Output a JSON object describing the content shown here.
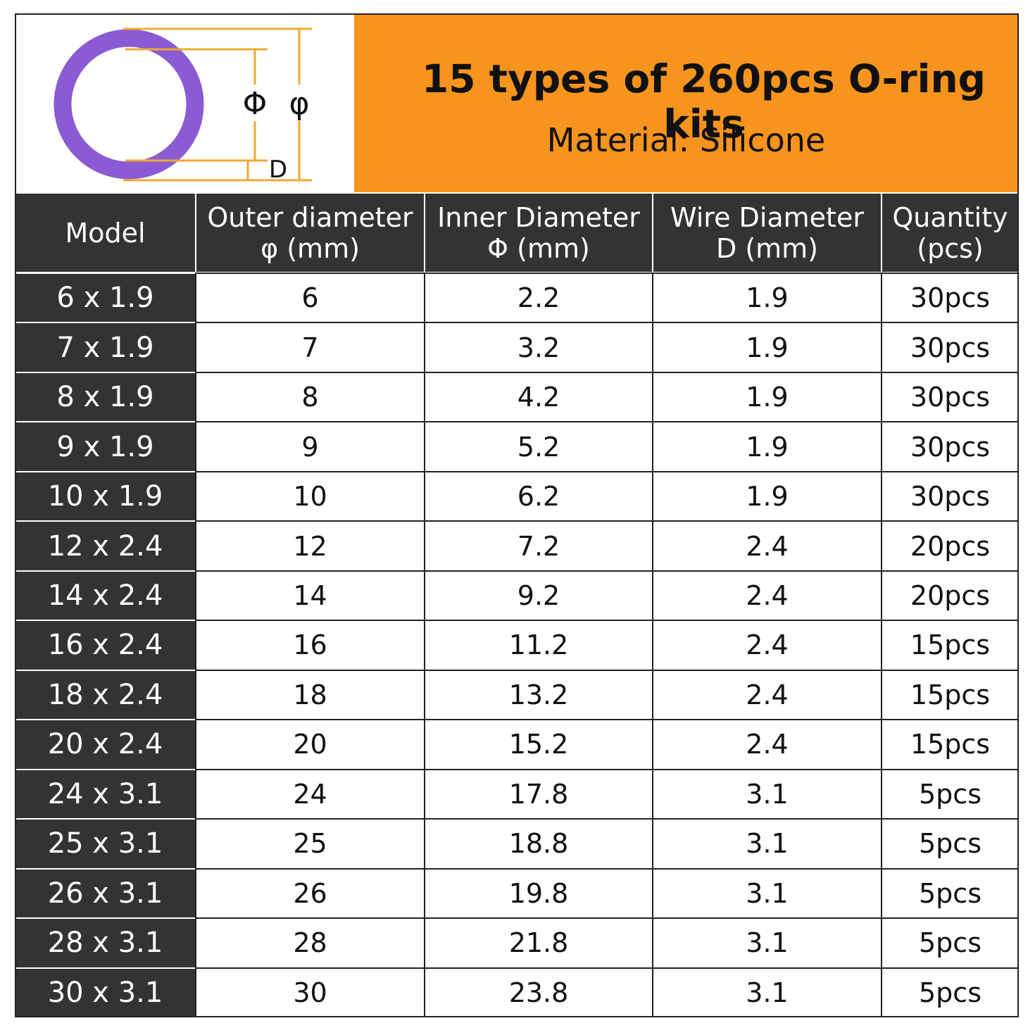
{
  "header": {
    "title": "15 types of 260pcs O-ring kits",
    "subtitle": "Material: Silicone"
  },
  "diagram": {
    "inner_label": "Φ",
    "outer_label": "φ",
    "wire_label": "D"
  },
  "table": {
    "columns": [
      [
        "Model"
      ],
      [
        "Outer diameter",
        "φ (mm)"
      ],
      [
        "Inner Diameter",
        "Φ (mm)"
      ],
      [
        "Wire Diameter",
        "D (mm)"
      ],
      [
        "Quantity",
        "(pcs)"
      ]
    ],
    "rows": [
      [
        "6 x 1.9",
        "6",
        "2.2",
        "1.9",
        "30pcs"
      ],
      [
        "7 x 1.9",
        "7",
        "3.2",
        "1.9",
        "30pcs"
      ],
      [
        "8 x 1.9",
        "8",
        "4.2",
        "1.9",
        "30pcs"
      ],
      [
        "9 x 1.9",
        "9",
        "5.2",
        "1.9",
        "30pcs"
      ],
      [
        "10 x 1.9",
        "10",
        "6.2",
        "1.9",
        "30pcs"
      ],
      [
        "12 x 2.4",
        "12",
        "7.2",
        "2.4",
        "20pcs"
      ],
      [
        "14 x 2.4",
        "14",
        "9.2",
        "2.4",
        "20pcs"
      ],
      [
        "16 x 2.4",
        "16",
        "11.2",
        "2.4",
        "15pcs"
      ],
      [
        "18 x 2.4",
        "18",
        "13.2",
        "2.4",
        "15pcs"
      ],
      [
        "20 x 2.4",
        "20",
        "15.2",
        "2.4",
        "15pcs"
      ],
      [
        "24 x 3.1",
        "24",
        "17.8",
        "3.1",
        "5pcs"
      ],
      [
        "25 x 3.1",
        "25",
        "18.8",
        "3.1",
        "5pcs"
      ],
      [
        "26 x 3.1",
        "26",
        "19.8",
        "3.1",
        "5pcs"
      ],
      [
        "28 x 3.1",
        "28",
        "21.8",
        "3.1",
        "5pcs"
      ],
      [
        "30 x 3.1",
        "30",
        "23.8",
        "3.1",
        "5pcs"
      ]
    ]
  }
}
